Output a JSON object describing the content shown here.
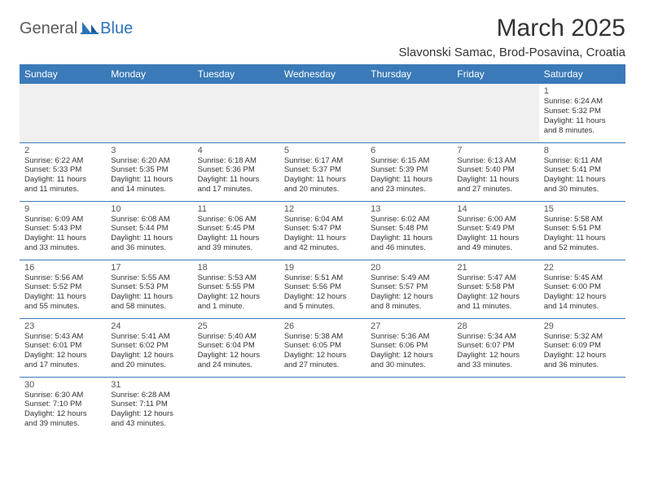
{
  "logo": {
    "part1": "General",
    "part2": "Blue"
  },
  "title": "March 2025",
  "location": "Slavonski Samac, Brod-Posavina, Croatia",
  "colors": {
    "header_bg": "#3a7ab8",
    "header_fg": "#ffffff",
    "row_border": "#3a7ab8",
    "empty_bg": "#f0f0f0",
    "logo_gray": "#5a5a5a",
    "logo_blue": "#2b73b8"
  },
  "day_headers": [
    "Sunday",
    "Monday",
    "Tuesday",
    "Wednesday",
    "Thursday",
    "Friday",
    "Saturday"
  ],
  "weeks": [
    [
      null,
      null,
      null,
      null,
      null,
      null,
      {
        "n": "1",
        "sunrise": "Sunrise: 6:24 AM",
        "sunset": "Sunset: 5:32 PM",
        "daylight": "Daylight: 11 hours and 8 minutes."
      }
    ],
    [
      {
        "n": "2",
        "sunrise": "Sunrise: 6:22 AM",
        "sunset": "Sunset: 5:33 PM",
        "daylight": "Daylight: 11 hours and 11 minutes."
      },
      {
        "n": "3",
        "sunrise": "Sunrise: 6:20 AM",
        "sunset": "Sunset: 5:35 PM",
        "daylight": "Daylight: 11 hours and 14 minutes."
      },
      {
        "n": "4",
        "sunrise": "Sunrise: 6:18 AM",
        "sunset": "Sunset: 5:36 PM",
        "daylight": "Daylight: 11 hours and 17 minutes."
      },
      {
        "n": "5",
        "sunrise": "Sunrise: 6:17 AM",
        "sunset": "Sunset: 5:37 PM",
        "daylight": "Daylight: 11 hours and 20 minutes."
      },
      {
        "n": "6",
        "sunrise": "Sunrise: 6:15 AM",
        "sunset": "Sunset: 5:39 PM",
        "daylight": "Daylight: 11 hours and 23 minutes."
      },
      {
        "n": "7",
        "sunrise": "Sunrise: 6:13 AM",
        "sunset": "Sunset: 5:40 PM",
        "daylight": "Daylight: 11 hours and 27 minutes."
      },
      {
        "n": "8",
        "sunrise": "Sunrise: 6:11 AM",
        "sunset": "Sunset: 5:41 PM",
        "daylight": "Daylight: 11 hours and 30 minutes."
      }
    ],
    [
      {
        "n": "9",
        "sunrise": "Sunrise: 6:09 AM",
        "sunset": "Sunset: 5:43 PM",
        "daylight": "Daylight: 11 hours and 33 minutes."
      },
      {
        "n": "10",
        "sunrise": "Sunrise: 6:08 AM",
        "sunset": "Sunset: 5:44 PM",
        "daylight": "Daylight: 11 hours and 36 minutes."
      },
      {
        "n": "11",
        "sunrise": "Sunrise: 6:06 AM",
        "sunset": "Sunset: 5:45 PM",
        "daylight": "Daylight: 11 hours and 39 minutes."
      },
      {
        "n": "12",
        "sunrise": "Sunrise: 6:04 AM",
        "sunset": "Sunset: 5:47 PM",
        "daylight": "Daylight: 11 hours and 42 minutes."
      },
      {
        "n": "13",
        "sunrise": "Sunrise: 6:02 AM",
        "sunset": "Sunset: 5:48 PM",
        "daylight": "Daylight: 11 hours and 46 minutes."
      },
      {
        "n": "14",
        "sunrise": "Sunrise: 6:00 AM",
        "sunset": "Sunset: 5:49 PM",
        "daylight": "Daylight: 11 hours and 49 minutes."
      },
      {
        "n": "15",
        "sunrise": "Sunrise: 5:58 AM",
        "sunset": "Sunset: 5:51 PM",
        "daylight": "Daylight: 11 hours and 52 minutes."
      }
    ],
    [
      {
        "n": "16",
        "sunrise": "Sunrise: 5:56 AM",
        "sunset": "Sunset: 5:52 PM",
        "daylight": "Daylight: 11 hours and 55 minutes."
      },
      {
        "n": "17",
        "sunrise": "Sunrise: 5:55 AM",
        "sunset": "Sunset: 5:53 PM",
        "daylight": "Daylight: 11 hours and 58 minutes."
      },
      {
        "n": "18",
        "sunrise": "Sunrise: 5:53 AM",
        "sunset": "Sunset: 5:55 PM",
        "daylight": "Daylight: 12 hours and 1 minute."
      },
      {
        "n": "19",
        "sunrise": "Sunrise: 5:51 AM",
        "sunset": "Sunset: 5:56 PM",
        "daylight": "Daylight: 12 hours and 5 minutes."
      },
      {
        "n": "20",
        "sunrise": "Sunrise: 5:49 AM",
        "sunset": "Sunset: 5:57 PM",
        "daylight": "Daylight: 12 hours and 8 minutes."
      },
      {
        "n": "21",
        "sunrise": "Sunrise: 5:47 AM",
        "sunset": "Sunset: 5:58 PM",
        "daylight": "Daylight: 12 hours and 11 minutes."
      },
      {
        "n": "22",
        "sunrise": "Sunrise: 5:45 AM",
        "sunset": "Sunset: 6:00 PM",
        "daylight": "Daylight: 12 hours and 14 minutes."
      }
    ],
    [
      {
        "n": "23",
        "sunrise": "Sunrise: 5:43 AM",
        "sunset": "Sunset: 6:01 PM",
        "daylight": "Daylight: 12 hours and 17 minutes."
      },
      {
        "n": "24",
        "sunrise": "Sunrise: 5:41 AM",
        "sunset": "Sunset: 6:02 PM",
        "daylight": "Daylight: 12 hours and 20 minutes."
      },
      {
        "n": "25",
        "sunrise": "Sunrise: 5:40 AM",
        "sunset": "Sunset: 6:04 PM",
        "daylight": "Daylight: 12 hours and 24 minutes."
      },
      {
        "n": "26",
        "sunrise": "Sunrise: 5:38 AM",
        "sunset": "Sunset: 6:05 PM",
        "daylight": "Daylight: 12 hours and 27 minutes."
      },
      {
        "n": "27",
        "sunrise": "Sunrise: 5:36 AM",
        "sunset": "Sunset: 6:06 PM",
        "daylight": "Daylight: 12 hours and 30 minutes."
      },
      {
        "n": "28",
        "sunrise": "Sunrise: 5:34 AM",
        "sunset": "Sunset: 6:07 PM",
        "daylight": "Daylight: 12 hours and 33 minutes."
      },
      {
        "n": "29",
        "sunrise": "Sunrise: 5:32 AM",
        "sunset": "Sunset: 6:09 PM",
        "daylight": "Daylight: 12 hours and 36 minutes."
      }
    ],
    [
      {
        "n": "30",
        "sunrise": "Sunrise: 6:30 AM",
        "sunset": "Sunset: 7:10 PM",
        "daylight": "Daylight: 12 hours and 39 minutes."
      },
      {
        "n": "31",
        "sunrise": "Sunrise: 6:28 AM",
        "sunset": "Sunset: 7:11 PM",
        "daylight": "Daylight: 12 hours and 43 minutes."
      },
      null,
      null,
      null,
      null,
      null
    ]
  ]
}
